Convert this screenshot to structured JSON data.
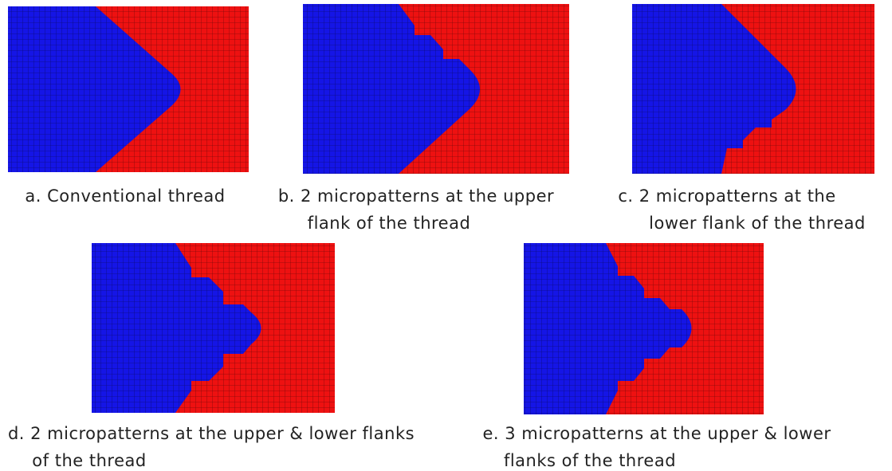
{
  "panels": [
    {
      "caption": [
        "a. Conventional thread"
      ]
    },
    {
      "caption": [
        "b. 2 micropatterns at the upper",
        "flank of the thread"
      ]
    },
    {
      "caption": [
        "c. 2 micropatterns at the",
        "lower flank of the thread"
      ]
    },
    {
      "caption": [
        "d. 2 micropatterns at the upper & lower flanks",
        "of the thread"
      ]
    },
    {
      "caption": [
        "e. 3 micropatterns at the upper & lower",
        "flanks of the thread"
      ]
    }
  ]
}
